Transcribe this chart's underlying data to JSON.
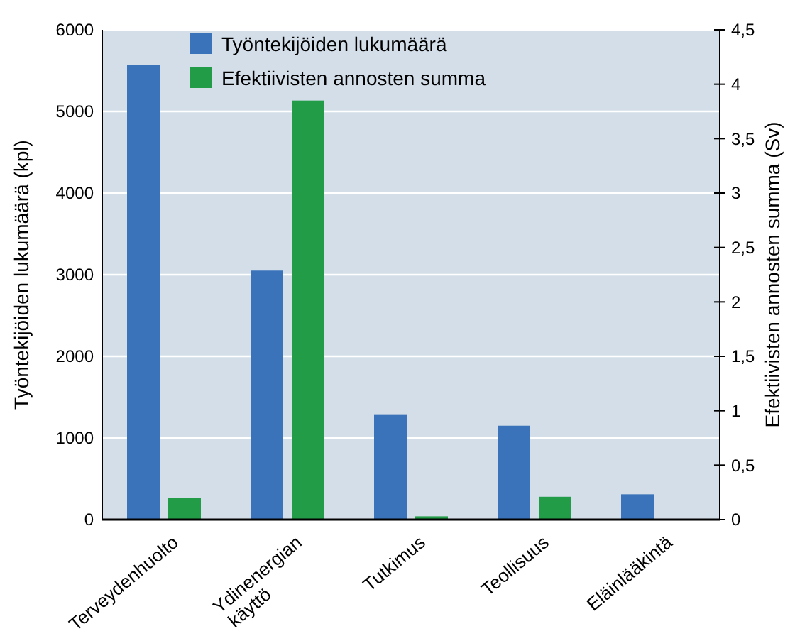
{
  "chart_data": {
    "type": "bar",
    "categories": [
      "Terveydenhuolto",
      "Ydinenergian\nkäyttö",
      "Tutkimus",
      "Teollisuus",
      "Eläinlääkintä"
    ],
    "series": [
      {
        "name": "Työntekijöiden lukumäärä",
        "color": "#3a73b9",
        "values": [
          5570,
          3050,
          1290,
          1150,
          310
        ]
      },
      {
        "name": "Efektiivisten annosten summa",
        "color": "#239c47",
        "values": [
          0.2,
          3.85,
          0.03,
          0.21,
          null
        ],
        "axis": "y2"
      }
    ],
    "ylabel": "Työntekijöiden lukumäärä (kpl)",
    "y2label": "Efektiivisten annosten summa (Sv)",
    "ylim": [
      0,
      6000
    ],
    "yticks": [
      0,
      1000,
      2000,
      3000,
      4000,
      5000,
      6000
    ],
    "y2lim": [
      0,
      4.5
    ],
    "y2ticks": [
      0,
      {
        "value": 0.5,
        "label": "0,5"
      },
      1,
      {
        "value": 1.5,
        "label": "1,5"
      },
      2,
      {
        "value": 2.5,
        "label": "2,5"
      },
      3,
      {
        "value": 3.5,
        "label": "3,5"
      },
      4,
      {
        "value": 4.5,
        "label": "4,5"
      }
    ],
    "grid": "y",
    "legend": "top left"
  }
}
